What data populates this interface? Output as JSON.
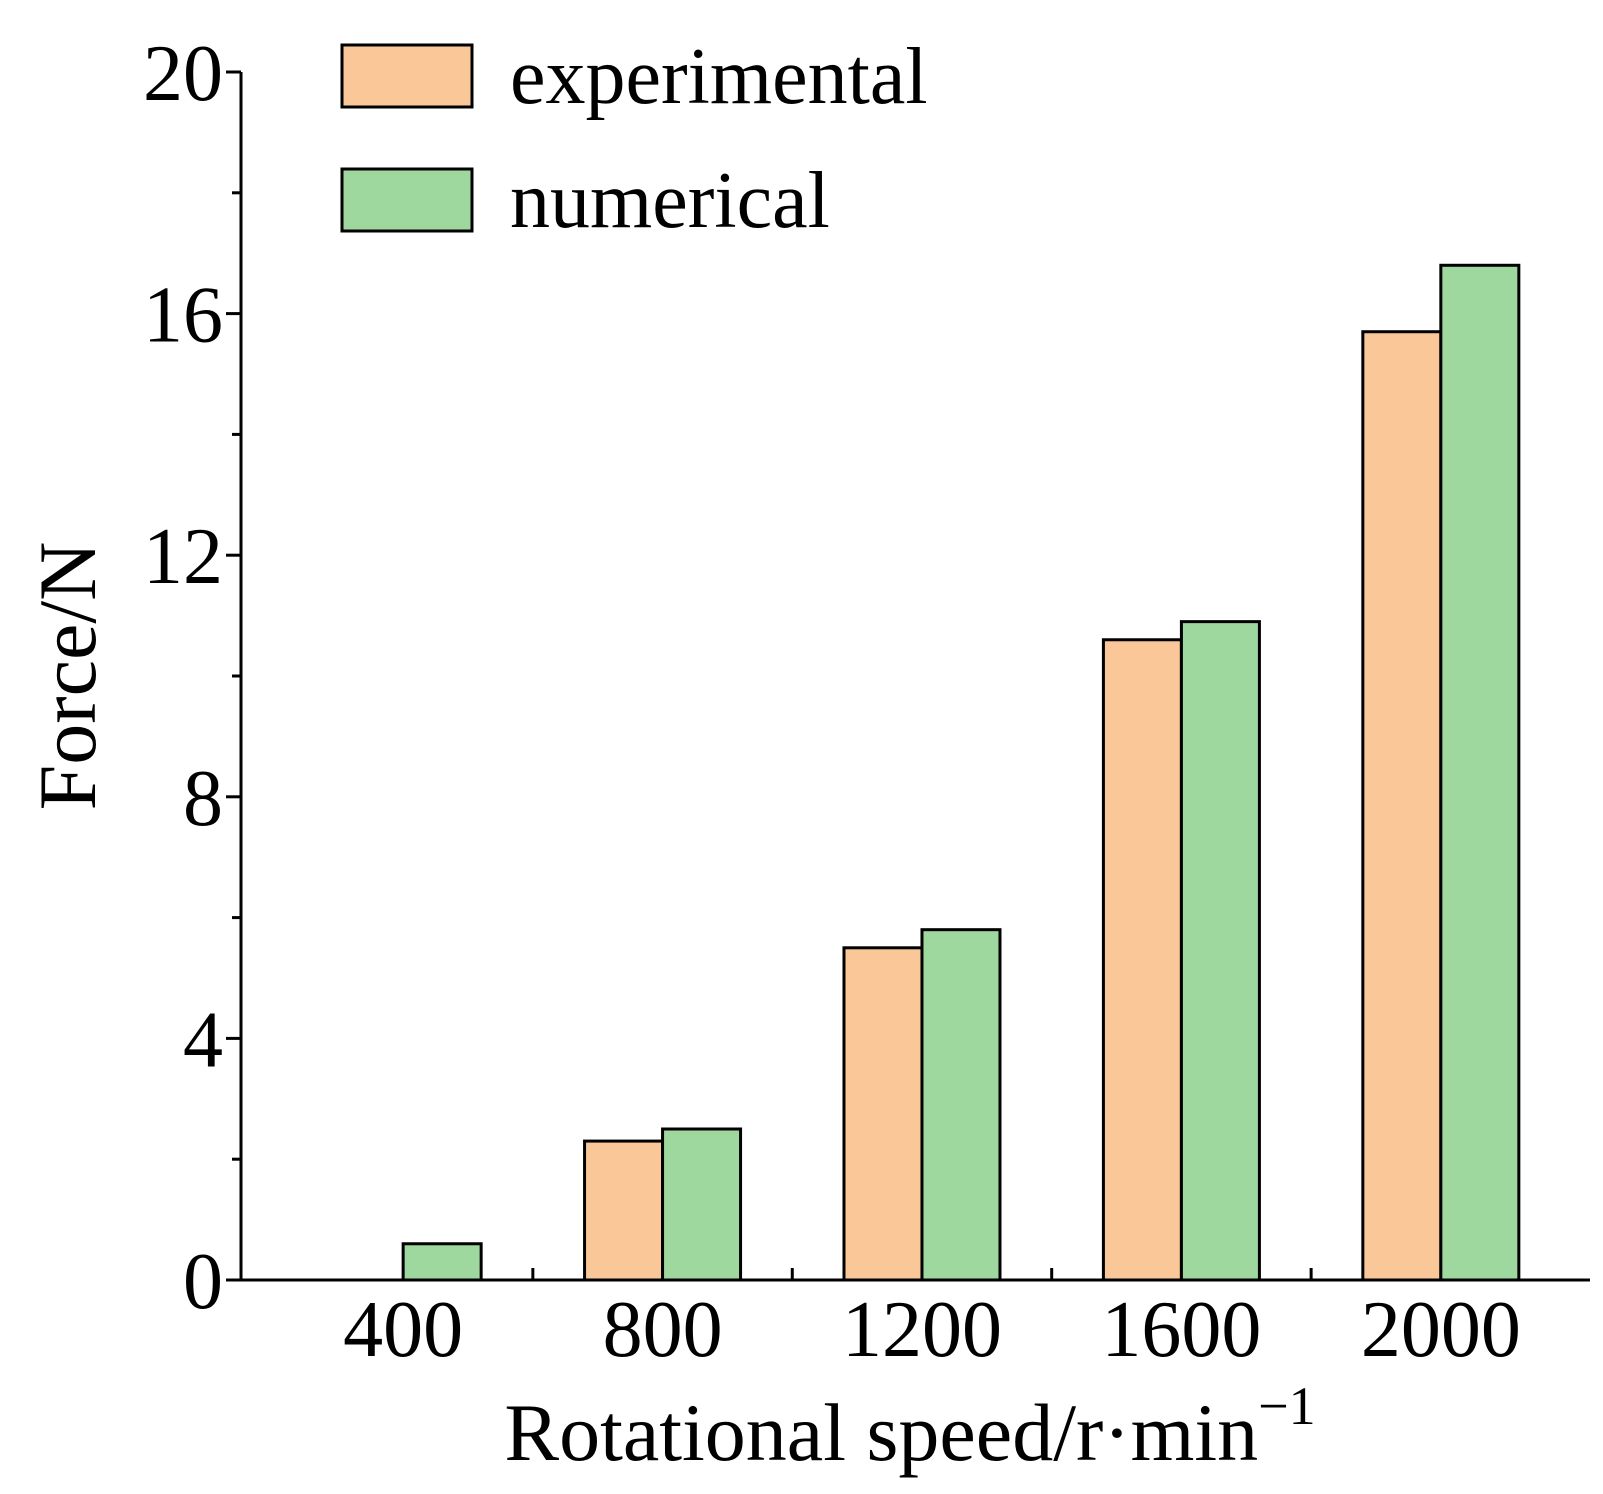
{
  "chart_data": {
    "type": "bar",
    "title": "",
    "xlabel": "Rotational speed/r·min",
    "xlabel_superscript": "−1",
    "ylabel": "Force/N",
    "categories": [
      "400",
      "800",
      "1200",
      "1600",
      "2000"
    ],
    "series": [
      {
        "name": "experimental",
        "color": "#FAC898",
        "values": [
          0,
          2.3,
          5.5,
          10.6,
          15.7
        ]
      },
      {
        "name": "numerical",
        "color": "#9ED89E",
        "values": [
          0.6,
          2.5,
          5.8,
          10.9,
          16.8
        ]
      }
    ],
    "ylim": [
      0,
      20
    ],
    "yticks": [
      0,
      4,
      8,
      12,
      16,
      20
    ],
    "grid": false,
    "legend_position": "top-left"
  }
}
